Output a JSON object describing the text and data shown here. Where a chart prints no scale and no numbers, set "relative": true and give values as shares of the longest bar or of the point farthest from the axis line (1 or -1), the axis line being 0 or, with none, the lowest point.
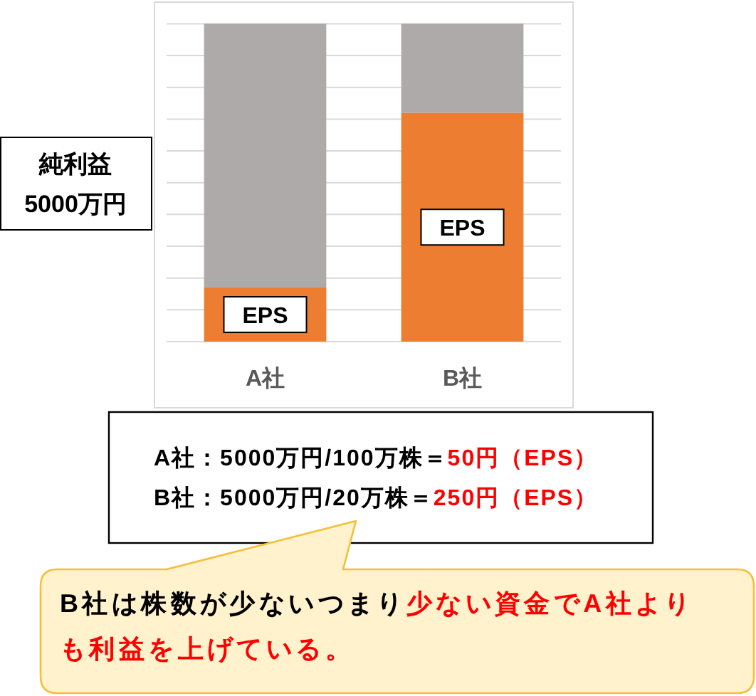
{
  "chart_data": {
    "type": "bar",
    "stacked": true,
    "relative": true,
    "grid": true,
    "categories": [
      "A社",
      "B社"
    ],
    "ylabel": "純利益\n5000万円",
    "series": [
      {
        "name": "EPS",
        "color": "#ed7d31",
        "values": [
          0.17,
          0.72
        ]
      },
      {
        "color": "#aeaaaa",
        "values": [
          0.83,
          0.28
        ]
      }
    ],
    "annotations": [
      "A社：5000万円/100万株＝",
      "50円（EPS）",
      "B社：5000万円/20万株＝",
      "250円（EPS）",
      "B社は株数が少ないつまり",
      "少ない資金でA社よりも利益を上げている。"
    ]
  }
}
